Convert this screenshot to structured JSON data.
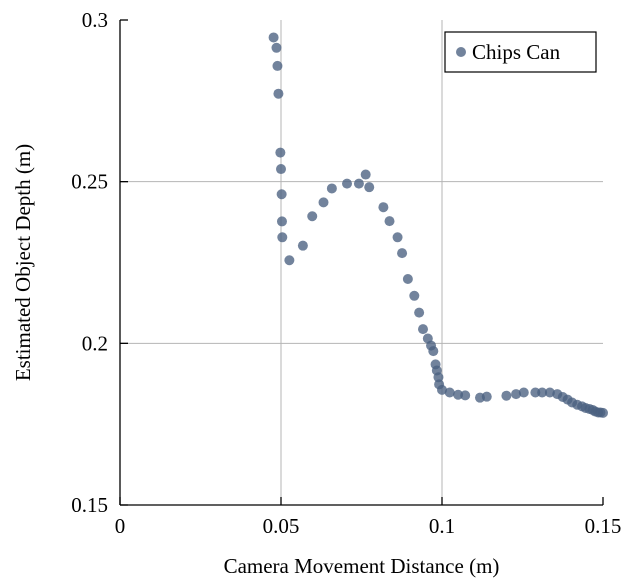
{
  "chart_data": {
    "type": "scatter",
    "title": "",
    "xlabel": "Camera Movement Distance (m)",
    "ylabel": "Estimated Object Depth (m)",
    "xlim": [
      0,
      0.15
    ],
    "ylim": [
      0.15,
      0.3
    ],
    "xticks": [
      0,
      0.05,
      0.1,
      0.15
    ],
    "xtick_labels": [
      "0",
      "0.05",
      "0.1",
      "0.15"
    ],
    "yticks": [
      0.15,
      0.2,
      0.25,
      0.3
    ],
    "ytick_labels": [
      "0.15",
      "0.2",
      "0.25",
      "0.3"
    ],
    "grid": true,
    "legend_position": "top-right",
    "series": [
      {
        "name": "Chips Can",
        "color": "#4a6080",
        "points": [
          [
            0.0477,
            0.2946
          ],
          [
            0.0486,
            0.2914
          ],
          [
            0.0489,
            0.2858
          ],
          [
            0.0492,
            0.2772
          ],
          [
            0.0498,
            0.259
          ],
          [
            0.05,
            0.2539
          ],
          [
            0.0502,
            0.2461
          ],
          [
            0.0503,
            0.2377
          ],
          [
            0.0504,
            0.2328
          ],
          [
            0.0526,
            0.2257
          ],
          [
            0.0568,
            0.2302
          ],
          [
            0.0597,
            0.2393
          ],
          [
            0.0632,
            0.2436
          ],
          [
            0.0658,
            0.2479
          ],
          [
            0.0705,
            0.2494
          ],
          [
            0.0742,
            0.2494
          ],
          [
            0.0763,
            0.2522
          ],
          [
            0.0774,
            0.2483
          ],
          [
            0.0818,
            0.2421
          ],
          [
            0.0837,
            0.2378
          ],
          [
            0.0862,
            0.2328
          ],
          [
            0.0876,
            0.2279
          ],
          [
            0.0894,
            0.2199
          ],
          [
            0.0914,
            0.2147
          ],
          [
            0.0929,
            0.2095
          ],
          [
            0.0941,
            0.2044
          ],
          [
            0.0956,
            0.2015
          ],
          [
            0.0966,
            0.1993
          ],
          [
            0.0973,
            0.1976
          ],
          [
            0.098,
            0.1935
          ],
          [
            0.0984,
            0.1916
          ],
          [
            0.0989,
            0.1895
          ],
          [
            0.0991,
            0.1873
          ],
          [
            0.1,
            0.1856
          ],
          [
            0.1024,
            0.1848
          ],
          [
            0.105,
            0.1841
          ],
          [
            0.1072,
            0.1839
          ],
          [
            0.1118,
            0.1832
          ],
          [
            0.1139,
            0.1835
          ],
          [
            0.12,
            0.1838
          ],
          [
            0.123,
            0.1843
          ],
          [
            0.1254,
            0.1848
          ],
          [
            0.129,
            0.1848
          ],
          [
            0.1311,
            0.1848
          ],
          [
            0.1335,
            0.1848
          ],
          [
            0.1358,
            0.1843
          ],
          [
            0.1375,
            0.1834
          ],
          [
            0.139,
            0.1826
          ],
          [
            0.1404,
            0.1817
          ],
          [
            0.142,
            0.181
          ],
          [
            0.1435,
            0.1805
          ],
          [
            0.1446,
            0.18
          ],
          [
            0.1458,
            0.1797
          ],
          [
            0.1468,
            0.1794
          ],
          [
            0.1476,
            0.1789
          ],
          [
            0.1485,
            0.1786
          ],
          [
            0.1492,
            0.1786
          ],
          [
            0.15,
            0.1785
          ]
        ]
      }
    ]
  }
}
